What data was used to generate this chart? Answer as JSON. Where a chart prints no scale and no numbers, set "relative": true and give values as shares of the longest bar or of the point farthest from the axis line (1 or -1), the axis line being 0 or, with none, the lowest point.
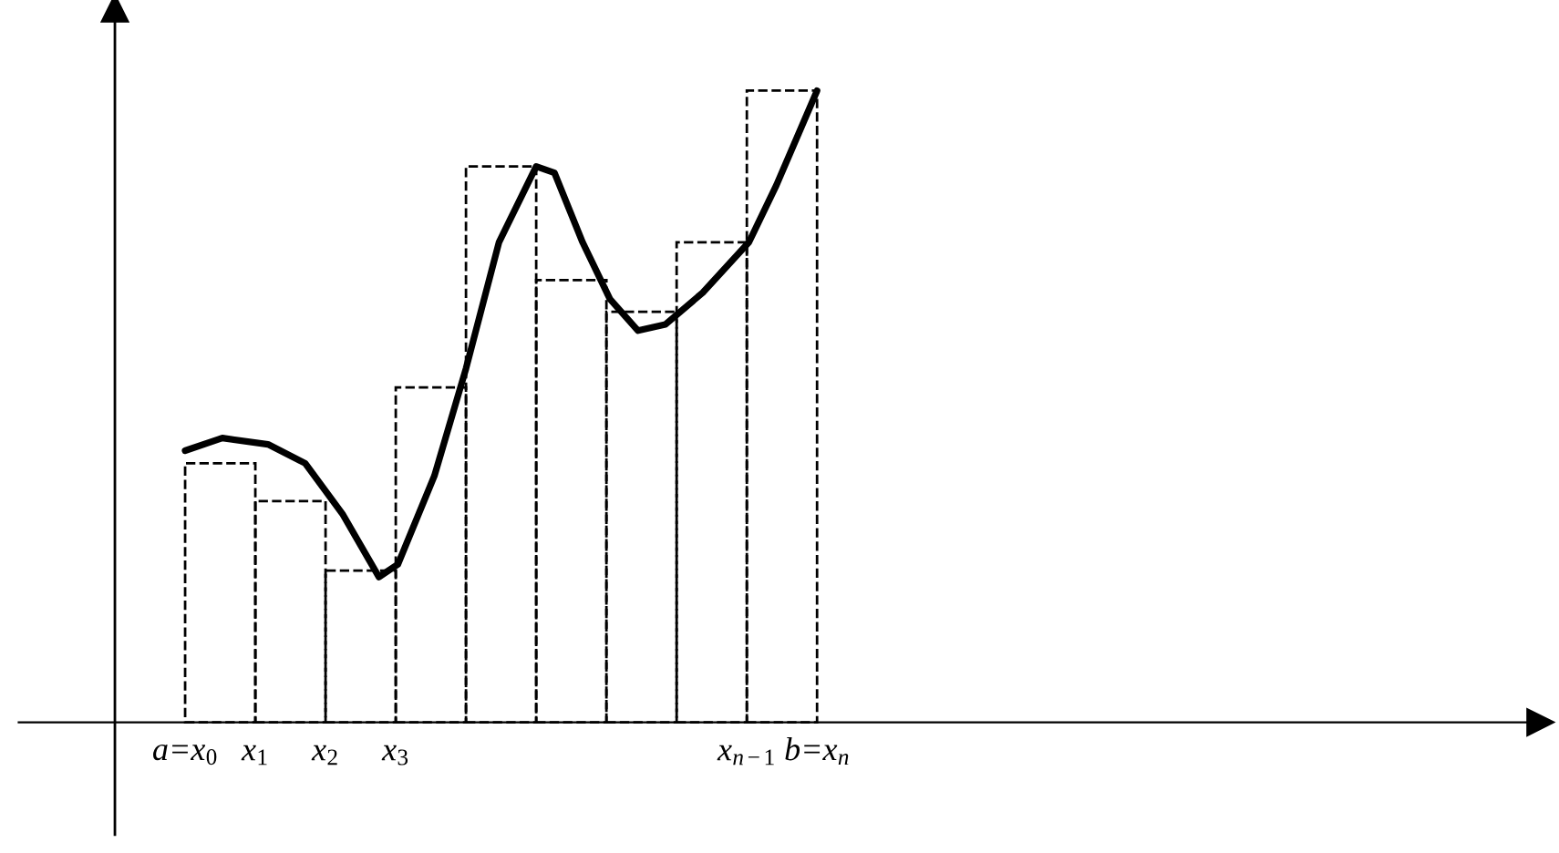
{
  "chart_data": {
    "type": "bar",
    "relative": true,
    "tick_labels": "x",
    "xlim": [
      -2.37,
      19.3
    ],
    "ref_lines": [
      {
        "axis": "x",
        "value": -1.0,
        "color": "#000000"
      }
    ],
    "xticks": [
      {
        "value": 0,
        "label": "a=x$_{0}$"
      },
      {
        "value": 1,
        "label": "x$_{1}$"
      },
      {
        "value": 2,
        "label": "x$_{2}$"
      },
      {
        "value": 3,
        "label": "x$_{3}$"
      },
      {
        "value": 8,
        "label": "x$_{n−1}$"
      },
      {
        "value": 9,
        "label": "b=x$_{n}$"
      }
    ],
    "series": [
      {
        "color": "#000000",
        "line_style": "dashed",
        "x": [
          0.5,
          1.5,
          2.5,
          3.5,
          4.5,
          5.5,
          6.5,
          7.5,
          8.5
        ],
        "values": [
          0.41,
          0.35,
          0.24,
          0.53,
          0.88,
          0.7,
          0.65,
          0.76,
          1.0
        ]
      },
      {
        "type": "line",
        "color": "#000000",
        "line_style": "solid",
        "x": [
          0,
          0.53,
          1.18,
          1.71,
          2.24,
          2.76,
          3.03,
          3.55,
          4.0,
          4.47,
          5.0,
          5.26,
          5.66,
          6.05,
          6.45,
          6.84,
          7.37,
          8.03,
          8.42,
          9.0
        ],
        "values": [
          0.43,
          0.45,
          0.44,
          0.41,
          0.33,
          0.23,
          0.25,
          0.39,
          0.56,
          0.76,
          0.88,
          0.87,
          0.76,
          0.67,
          0.62,
          0.63,
          0.68,
          0.76,
          0.85,
          1.0
        ]
      }
    ]
  }
}
